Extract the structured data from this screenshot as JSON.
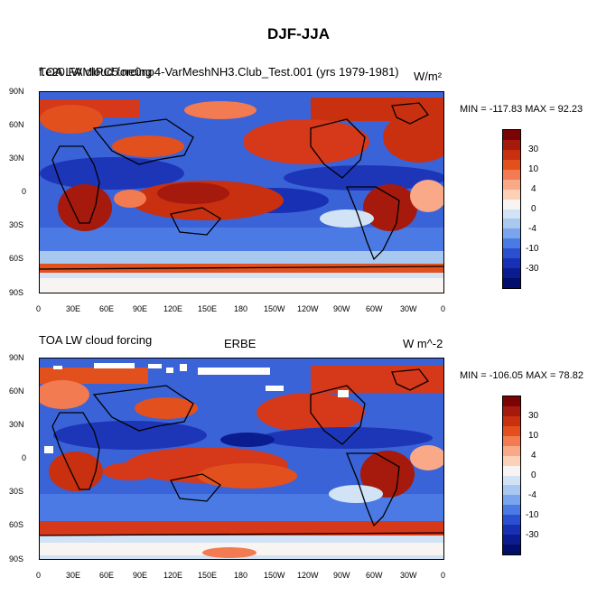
{
  "title": "DJF-JJA",
  "x_tick_labels": [
    "0",
    "30E",
    "60E",
    "90E",
    "120E",
    "150E",
    "180",
    "150W",
    "120W",
    "90W",
    "60W",
    "30W",
    "0"
  ],
  "y_tick_labels": [
    "90N",
    "60N",
    "30N",
    "0",
    "30S",
    "60S",
    "90S"
  ],
  "panels": [
    {
      "left_title_a": "TOA LW cloud forcing",
      "left_title_b": "f.e20.FAMIPC5.ne0np4-VarMeshNH3.Club_Test.001 (yrs 1979-1981)",
      "center_title": "",
      "right_title": "W/m²",
      "minmax": "MIN = -117.83 MAX =  92.23"
    },
    {
      "left_title_a": "TOA LW cloud forcing",
      "left_title_b": "",
      "center_title": "ERBE",
      "right_title": "W m^-2",
      "minmax": "MIN = -106.05 MAX =  78.82"
    }
  ],
  "colorbar": {
    "labels": [
      "30",
      "10",
      "4",
      "0",
      "-4",
      "-10",
      "-30"
    ],
    "colors": [
      "#7a0403",
      "#a51a0c",
      "#c8300f",
      "#e2501e",
      "#f37b51",
      "#f9a888",
      "#fdd0b8",
      "#f8f4f2",
      "#d2e3f6",
      "#a8c8f0",
      "#7aa5ec",
      "#4c7ae4",
      "#2a50d0",
      "#1730b4",
      "#0a1c90",
      "#030d6a"
    ]
  },
  "colors": {
    "deep_red": "#a51a0c",
    "red": "#d6381a",
    "deep_blue": "#1d36b8",
    "blue": "#3a63d8",
    "light_blue": "#a8c8f0",
    "white": "#f8f4f2"
  }
}
